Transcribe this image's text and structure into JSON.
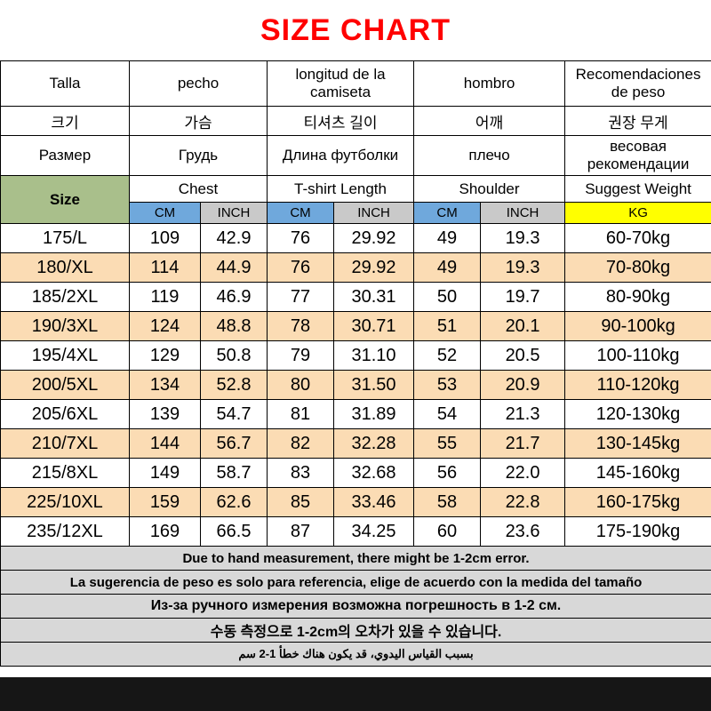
{
  "title": "SIZE CHART",
  "colors": {
    "title_red": "#FF0000",
    "size_header_green": "#A9BF8B",
    "cm_header_blue": "#6FA8DC",
    "inch_header_gray": "#C9C9C9",
    "kg_header_yellow": "#FFFF00",
    "alt_row_peach": "#FBDCB4",
    "footnote_gray": "#D8D8D8"
  },
  "header": {
    "langs": [
      {
        "size": "Talla",
        "chest": "pecho",
        "length": "longitud de la camiseta",
        "shoulder": "hombro",
        "weight": "Recomendaciones de peso"
      },
      {
        "size": "크기",
        "chest": "가슴",
        "length": "티셔츠 길이",
        "shoulder": "어깨",
        "weight": "권장 무게"
      },
      {
        "size": "Размер",
        "chest": "Грудь",
        "length": "Длина футболки",
        "shoulder": "плечо",
        "weight": "весовая рекомендации"
      }
    ],
    "en": {
      "size": "Size",
      "chest": "Chest",
      "length": "T-shirt Length",
      "shoulder": "Shoulder",
      "weight": "Suggest Weight"
    },
    "units": {
      "cm": "CM",
      "inch": "INCH",
      "kg": "KG"
    }
  },
  "chart_data": {
    "type": "table",
    "columns": [
      "Size",
      "Chest CM",
      "Chest INCH",
      "T-shirt Length CM",
      "T-shirt Length INCH",
      "Shoulder CM",
      "Shoulder INCH",
      "Suggest Weight KG"
    ],
    "rows": [
      [
        "175/L",
        "109",
        "42.9",
        "76",
        "29.92",
        "49",
        "19.3",
        "60-70kg"
      ],
      [
        "180/XL",
        "114",
        "44.9",
        "76",
        "29.92",
        "49",
        "19.3",
        "70-80kg"
      ],
      [
        "185/2XL",
        "119",
        "46.9",
        "77",
        "30.31",
        "50",
        "19.7",
        "80-90kg"
      ],
      [
        "190/3XL",
        "124",
        "48.8",
        "78",
        "30.71",
        "51",
        "20.1",
        "90-100kg"
      ],
      [
        "195/4XL",
        "129",
        "50.8",
        "79",
        "31.10",
        "52",
        "20.5",
        "100-110kg"
      ],
      [
        "200/5XL",
        "134",
        "52.8",
        "80",
        "31.50",
        "53",
        "20.9",
        "110-120kg"
      ],
      [
        "205/6XL",
        "139",
        "54.7",
        "81",
        "31.89",
        "54",
        "21.3",
        "120-130kg"
      ],
      [
        "210/7XL",
        "144",
        "56.7",
        "82",
        "32.28",
        "55",
        "21.7",
        "130-145kg"
      ],
      [
        "215/8XL",
        "149",
        "58.7",
        "83",
        "32.68",
        "56",
        "22.0",
        "145-160kg"
      ],
      [
        "225/10XL",
        "159",
        "62.6",
        "85",
        "33.46",
        "58",
        "22.8",
        "160-175kg"
      ],
      [
        "235/12XL",
        "169",
        "66.5",
        "87",
        "34.25",
        "60",
        "23.6",
        "175-190kg"
      ]
    ]
  },
  "footnotes": [
    {
      "text": "Due to hand measurement, there might be 1-2cm error.",
      "lang": "en"
    },
    {
      "text": "La sugerencia de peso es solo para referencia, elige de acuerdo con la medida del tamaño",
      "lang": "es"
    },
    {
      "text": "Из-за ручного измерения возможна погрешность в 1-2 см.",
      "lang": "ru"
    },
    {
      "text": "수동 측정으로 1-2cm의 오차가 있을 수 있습니다.",
      "lang": "ko"
    },
    {
      "text": "بسبب القياس اليدوي، قد يكون هناك خطأ 1-2 سم",
      "lang": "ar"
    }
  ]
}
